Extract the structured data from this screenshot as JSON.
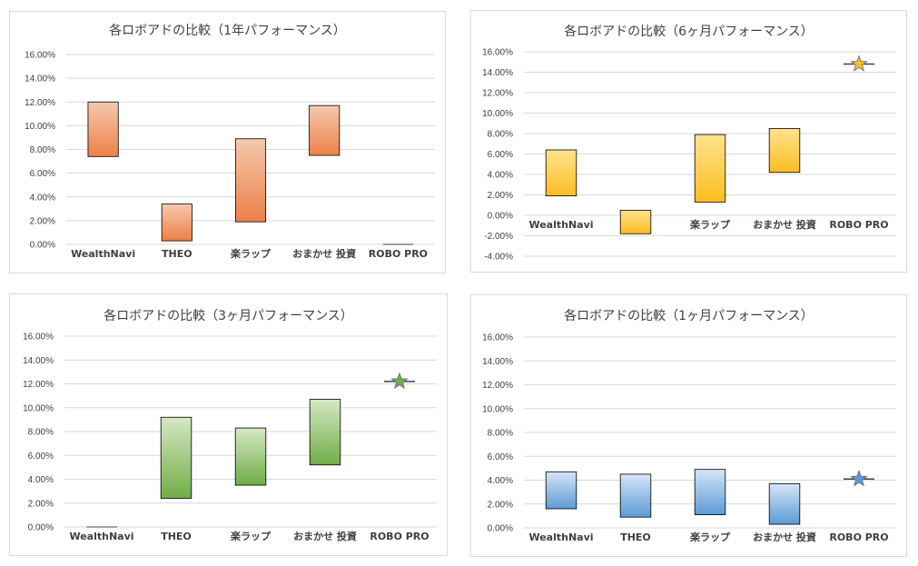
{
  "colors": {
    "orange": [
      "#f5c9ad",
      "#ed8048"
    ],
    "yellow": [
      "#ffe38f",
      "#fbbd20"
    ],
    "green": [
      "#d5e8c4",
      "#70ad47"
    ],
    "blue": [
      "#d6e5f7",
      "#5b9bd5"
    ]
  },
  "chart_data": [
    {
      "type": "bar",
      "style": "floating-range",
      "title": "各ロボアドの比較（1年パフォーマンス）",
      "categories": [
        "WealthNavi",
        "THEO",
        "楽ラップ",
        "おまかせ 投資",
        "ROBO PRO"
      ],
      "ranges": [
        [
          7.4,
          12.0
        ],
        [
          0.3,
          3.4
        ],
        [
          1.9,
          8.9
        ],
        [
          7.5,
          11.7
        ],
        [
          0.0,
          0.0
        ]
      ],
      "star": null,
      "color": "orange",
      "ylim": [
        0,
        16
      ],
      "yticks": [
        "0.00%",
        "2.00%",
        "4.00%",
        "6.00%",
        "8.00%",
        "10.00%",
        "12.00%",
        "14.00%",
        "16.00%"
      ],
      "grid": true
    },
    {
      "type": "bar",
      "style": "floating-range",
      "title": "各ロボアドの比較（6ヶ月パフォーマンス）",
      "categories": [
        "WealthNavi",
        "THEO",
        "楽ラップ",
        "おまかせ 投資",
        "ROBO PRO"
      ],
      "ranges": [
        [
          1.9,
          6.4
        ],
        [
          -1.8,
          0.5
        ],
        [
          1.3,
          7.9
        ],
        [
          4.2,
          8.5
        ],
        null
      ],
      "star": 14.8,
      "color": "yellow",
      "ylim": [
        -4,
        16
      ],
      "yticks": [
        "-4.00%",
        "-2.00%",
        "0.00%",
        "2.00%",
        "4.00%",
        "6.00%",
        "8.00%",
        "10.00%",
        "12.00%",
        "14.00%",
        "16.00%"
      ],
      "grid": true
    },
    {
      "type": "bar",
      "style": "floating-range",
      "title": "各ロボアドの比較（3ヶ月パフォーマンス）",
      "categories": [
        "WealthNavi",
        "THEO",
        "楽ラップ",
        "おまかせ 投資",
        "ROBO PRO"
      ],
      "ranges": [
        [
          0.0,
          0.0
        ],
        [
          2.4,
          9.2
        ],
        [
          3.5,
          8.3
        ],
        [
          5.2,
          10.7
        ],
        null
      ],
      "star": 12.2,
      "color": "green",
      "ylim": [
        0,
        16
      ],
      "yticks": [
        "0.00%",
        "2.00%",
        "4.00%",
        "6.00%",
        "8.00%",
        "10.00%",
        "12.00%",
        "14.00%",
        "16.00%"
      ],
      "grid": true
    },
    {
      "type": "bar",
      "style": "floating-range",
      "title": "各ロボアドの比較（1ヶ月パフォーマンス）",
      "categories": [
        "WealthNavi",
        "THEO",
        "楽ラップ",
        "おまかせ 投資",
        "ROBO PRO"
      ],
      "ranges": [
        [
          1.6,
          4.7
        ],
        [
          0.9,
          4.5
        ],
        [
          1.1,
          4.9
        ],
        [
          0.3,
          3.7
        ],
        null
      ],
      "star": 4.1,
      "color": "blue",
      "ylim": [
        0,
        16
      ],
      "yticks": [
        "0.00%",
        "2.00%",
        "4.00%",
        "6.00%",
        "8.00%",
        "10.00%",
        "12.00%",
        "14.00%",
        "16.00%"
      ],
      "grid": true
    }
  ]
}
